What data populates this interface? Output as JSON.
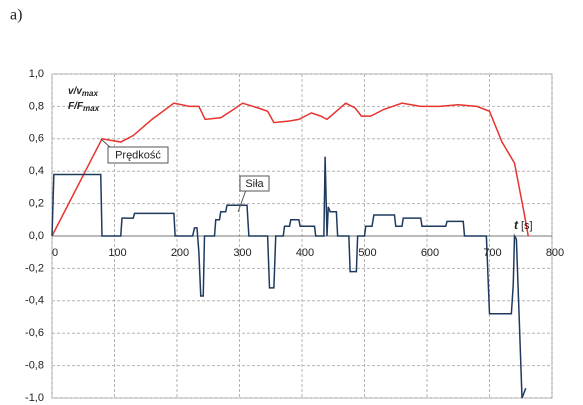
{
  "panel_label": "a)",
  "chart_data": {
    "type": "line",
    "ylabel": [
      {
        "main": "v/v",
        "sub": "max"
      },
      {
        "main": "F/F",
        "sub": "max"
      }
    ],
    "xlabel": {
      "main": "t",
      "unit": "[s]"
    },
    "annotations": [
      "Prędkość",
      "Siła"
    ],
    "xlim": [
      0,
      800
    ],
    "xticks": [
      0,
      100,
      200,
      300,
      400,
      500,
      600,
      700,
      800
    ],
    "ylim": [
      -1,
      1
    ],
    "yticks": [
      {
        "value": -1,
        "label": "-1,0"
      },
      {
        "value": -0.8,
        "label": "-0,8"
      },
      {
        "value": -0.6,
        "label": "-0,6"
      },
      {
        "value": -0.4,
        "label": "-0,4"
      },
      {
        "value": -0.2,
        "label": "-0,2"
      },
      {
        "value": 0,
        "label": "0,0"
      },
      {
        "value": 0.2,
        "label": "0,2"
      },
      {
        "value": 0.4,
        "label": "0,4"
      },
      {
        "value": 0.6,
        "label": "0,6"
      },
      {
        "value": 0.8,
        "label": "0,8"
      },
      {
        "value": 1,
        "label": "1,0"
      }
    ],
    "grid": true,
    "series": [
      {
        "color": "#e8332f",
        "x": [
          0,
          80,
          110,
          130,
          160,
          195,
          220,
          235,
          245,
          270,
          290,
          305,
          330,
          345,
          355,
          380,
          395,
          415,
          430,
          440,
          470,
          485,
          495,
          510,
          530,
          560,
          590,
          620,
          650,
          680,
          700,
          720,
          740,
          755,
          762
        ],
        "values": [
          0,
          0.6,
          0.58,
          0.62,
          0.72,
          0.82,
          0.8,
          0.8,
          0.72,
          0.73,
          0.78,
          0.82,
          0.79,
          0.77,
          0.7,
          0.71,
          0.72,
          0.76,
          0.74,
          0.72,
          0.82,
          0.79,
          0.74,
          0.74,
          0.78,
          0.82,
          0.8,
          0.8,
          0.81,
          0.8,
          0.77,
          0.58,
          0.45,
          0.15,
          0
        ]
      },
      {
        "color": "#1f3a5f",
        "x": [
          0,
          3,
          78,
          80,
          110,
          112,
          130,
          132,
          195,
          197,
          225,
          228,
          232,
          235,
          238,
          242,
          244,
          260,
          262,
          268,
          270,
          278,
          280,
          312,
          315,
          345,
          348,
          355,
          358,
          370,
          372,
          380,
          382,
          395,
          397,
          420,
          422,
          435,
          437,
          440,
          442,
          445,
          455,
          457,
          475,
          477,
          487,
          489,
          500,
          502,
          512,
          515,
          548,
          550,
          560,
          562,
          590,
          592,
          630,
          632,
          658,
          660,
          695,
          700,
          735,
          738,
          740,
          743,
          747,
          752,
          755,
          758
        ],
        "values": [
          0,
          0.38,
          0.38,
          0,
          0,
          0.11,
          0.11,
          0.14,
          0.14,
          0,
          0,
          0.05,
          0.05,
          -0.1,
          -0.37,
          -0.37,
          0,
          0,
          0.1,
          0.1,
          0.15,
          0.15,
          0.19,
          0.19,
          0,
          0,
          -0.32,
          -0.32,
          0,
          0,
          0.06,
          0.06,
          0.1,
          0.1,
          0.06,
          0.06,
          0,
          0,
          0.49,
          0,
          0.18,
          0.15,
          0.15,
          0,
          0,
          -0.22,
          -0.22,
          0,
          0,
          0.06,
          0.06,
          0.13,
          0.13,
          0.06,
          0.06,
          0.11,
          0.11,
          0.06,
          0.06,
          0.09,
          0.09,
          0,
          0,
          -0.48,
          -0.48,
          -0.3,
          0,
          -0.02,
          -0.45,
          -1,
          -0.97,
          -0.94
        ]
      }
    ]
  }
}
